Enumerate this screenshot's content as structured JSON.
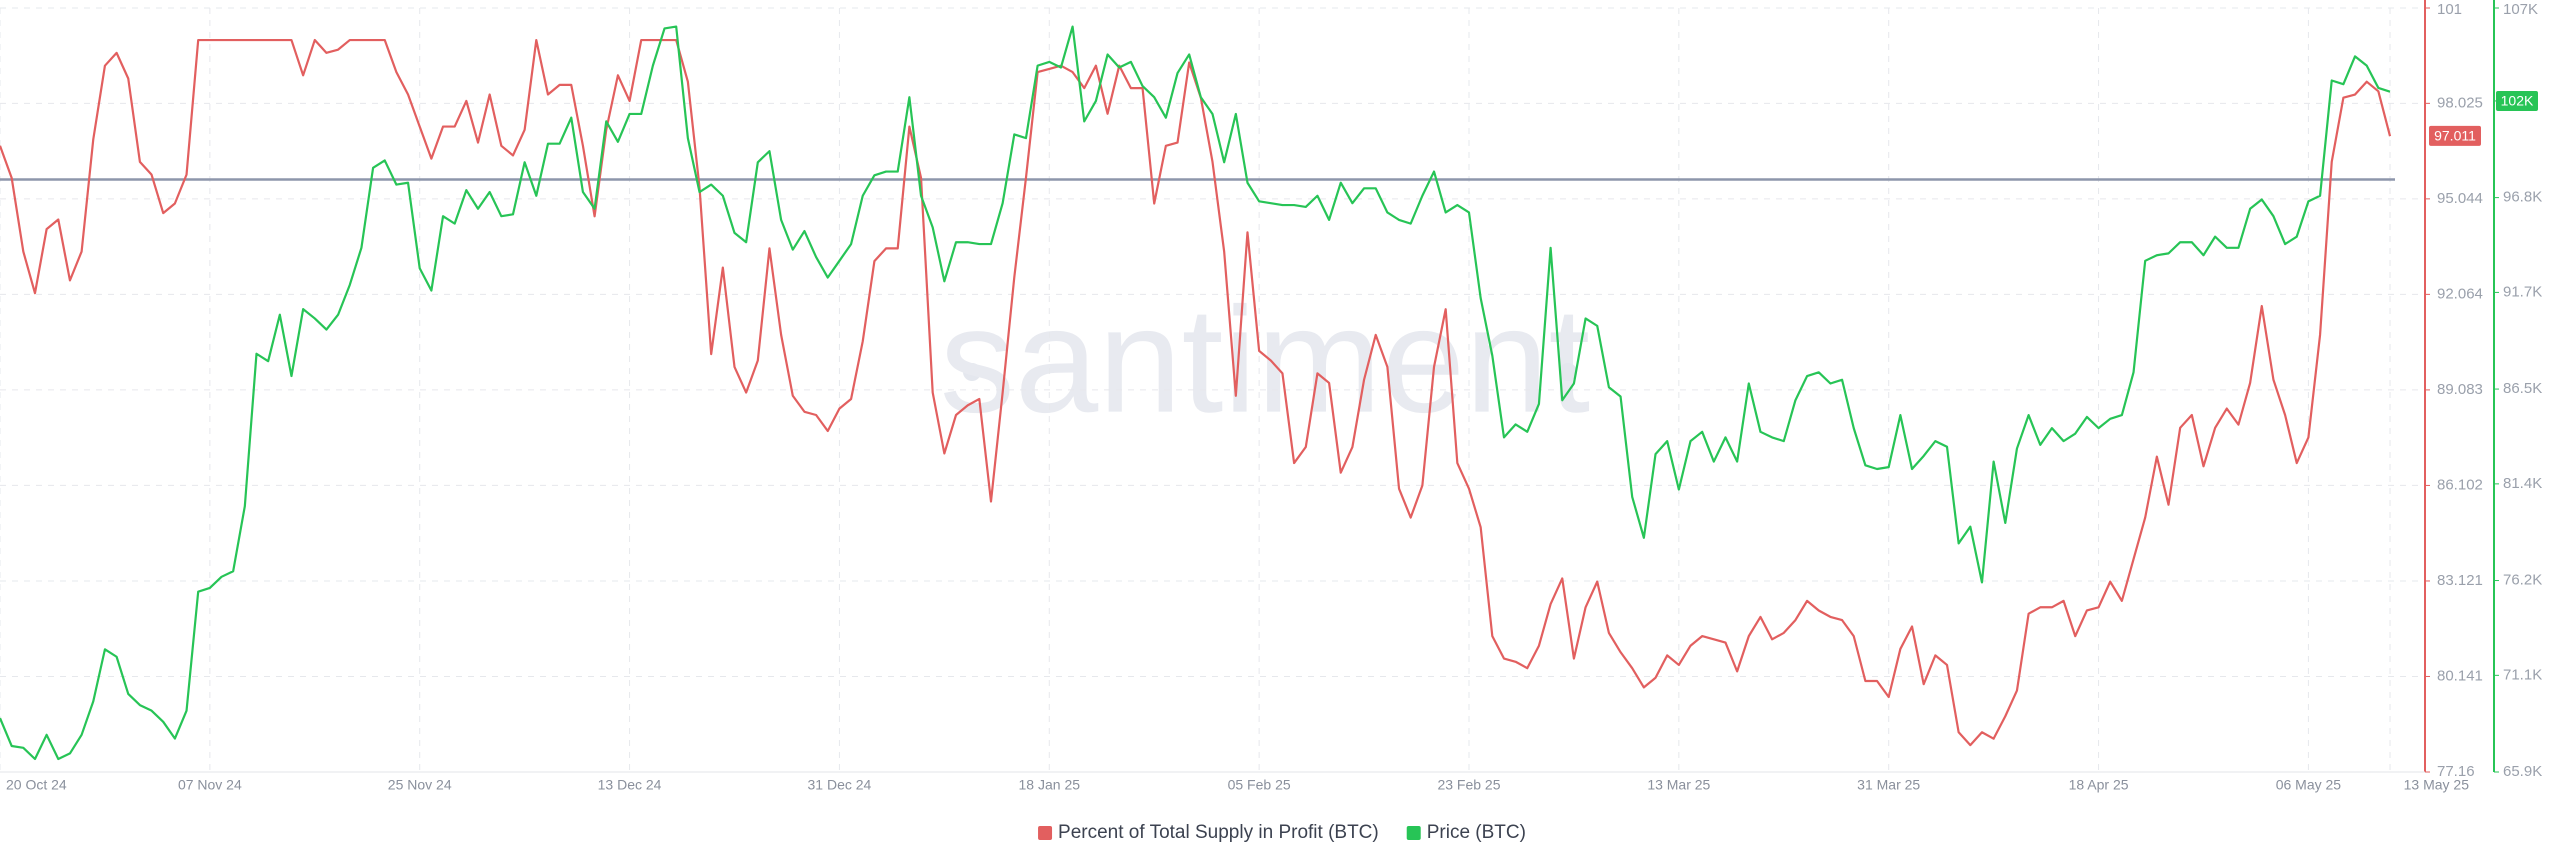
{
  "chart_data": {
    "type": "line",
    "watermark": "santiment",
    "x": [
      "2024-10-20",
      "2024-10-21",
      "2024-10-22",
      "2024-10-23",
      "2024-10-24",
      "2024-10-25",
      "2024-10-26",
      "2024-10-27",
      "2024-10-28",
      "2024-10-29",
      "2024-10-30",
      "2024-10-31",
      "2024-11-01",
      "2024-11-02",
      "2024-11-03",
      "2024-11-04",
      "2024-11-05",
      "2024-11-06",
      "2024-11-07",
      "2024-11-08",
      "2024-11-09",
      "2024-11-10",
      "2024-11-11",
      "2024-11-12",
      "2024-11-13",
      "2024-11-14",
      "2024-11-15",
      "2024-11-16",
      "2024-11-17",
      "2024-11-18",
      "2024-11-19",
      "2024-11-20",
      "2024-11-21",
      "2024-11-22",
      "2024-11-23",
      "2024-11-24",
      "2024-11-25",
      "2024-11-26",
      "2024-11-27",
      "2024-11-28",
      "2024-11-29",
      "2024-11-30",
      "2024-12-01",
      "2024-12-02",
      "2024-12-03",
      "2024-12-04",
      "2024-12-05",
      "2024-12-06",
      "2024-12-07",
      "2024-12-08",
      "2024-12-09",
      "2024-12-10",
      "2024-12-11",
      "2024-12-12",
      "2024-12-13",
      "2024-12-14",
      "2024-12-15",
      "2024-12-16",
      "2024-12-17",
      "2024-12-18",
      "2024-12-19",
      "2024-12-20",
      "2024-12-21",
      "2024-12-22",
      "2024-12-23",
      "2024-12-24",
      "2024-12-25",
      "2024-12-26",
      "2024-12-27",
      "2024-12-28",
      "2024-12-29",
      "2024-12-30",
      "2024-12-31",
      "2025-01-01",
      "2025-01-02",
      "2025-01-03",
      "2025-01-04",
      "2025-01-05",
      "2025-01-06",
      "2025-01-07",
      "2025-01-08",
      "2025-01-09",
      "2025-01-10",
      "2025-01-11",
      "2025-01-12",
      "2025-01-13",
      "2025-01-14",
      "2025-01-15",
      "2025-01-16",
      "2025-01-17",
      "2025-01-18",
      "2025-01-19",
      "2025-01-20",
      "2025-01-21",
      "2025-01-22",
      "2025-01-23",
      "2025-01-24",
      "2025-01-25",
      "2025-01-26",
      "2025-01-27",
      "2025-01-28",
      "2025-01-29",
      "2025-01-30",
      "2025-01-31",
      "2025-02-01",
      "2025-02-02",
      "2025-02-03",
      "2025-02-04",
      "2025-02-05",
      "2025-02-06",
      "2025-02-07",
      "2025-02-08",
      "2025-02-09",
      "2025-02-10",
      "2025-02-11",
      "2025-02-12",
      "2025-02-13",
      "2025-02-14",
      "2025-02-15",
      "2025-02-16",
      "2025-02-17",
      "2025-02-18",
      "2025-02-19",
      "2025-02-20",
      "2025-02-21",
      "2025-02-22",
      "2025-02-23",
      "2025-02-24",
      "2025-02-25",
      "2025-02-26",
      "2025-02-27",
      "2025-02-28",
      "2025-03-01",
      "2025-03-02",
      "2025-03-03",
      "2025-03-04",
      "2025-03-05",
      "2025-03-06",
      "2025-03-07",
      "2025-03-08",
      "2025-03-09",
      "2025-03-10",
      "2025-03-11",
      "2025-03-12",
      "2025-03-13",
      "2025-03-14",
      "2025-03-15",
      "2025-03-16",
      "2025-03-17",
      "2025-03-18",
      "2025-03-19",
      "2025-03-20",
      "2025-03-21",
      "2025-03-22",
      "2025-03-23",
      "2025-03-24",
      "2025-03-25",
      "2025-03-26",
      "2025-03-27",
      "2025-03-28",
      "2025-03-29",
      "2025-03-30",
      "2025-03-31",
      "2025-04-01",
      "2025-04-02",
      "2025-04-03",
      "2025-04-04",
      "2025-04-05",
      "2025-04-06",
      "2025-04-07",
      "2025-04-08",
      "2025-04-09",
      "2025-04-10",
      "2025-04-11",
      "2025-04-12",
      "2025-04-13",
      "2025-04-14",
      "2025-04-15",
      "2025-04-16",
      "2025-04-17",
      "2025-04-18",
      "2025-04-19",
      "2025-04-20",
      "2025-04-21",
      "2025-04-22",
      "2025-04-23",
      "2025-04-24",
      "2025-04-25",
      "2025-04-26",
      "2025-04-27",
      "2025-04-28",
      "2025-04-29",
      "2025-04-30",
      "2025-05-01",
      "2025-05-02",
      "2025-05-03",
      "2025-05-04",
      "2025-05-05",
      "2025-05-06",
      "2025-05-07",
      "2025-05-08",
      "2025-05-09",
      "2025-05-10",
      "2025-05-11",
      "2025-05-12",
      "2025-05-13"
    ],
    "xlim": [
      "2024-10-20",
      "2025-05-16"
    ],
    "xticks": [
      {
        "value": "2024-10-20",
        "label": "20 Oct 24"
      },
      {
        "value": "2024-11-07",
        "label": "07 Nov 24"
      },
      {
        "value": "2024-11-25",
        "label": "25 Nov 24"
      },
      {
        "value": "2024-12-13",
        "label": "13 Dec 24"
      },
      {
        "value": "2024-12-31",
        "label": "31 Dec 24"
      },
      {
        "value": "2025-01-18",
        "label": "18 Jan 25"
      },
      {
        "value": "2025-02-05",
        "label": "05 Feb 25"
      },
      {
        "value": "2025-02-23",
        "label": "23 Feb 25"
      },
      {
        "value": "2025-03-13",
        "label": "13 Mar 25"
      },
      {
        "value": "2025-03-31",
        "label": "31 Mar 25"
      },
      {
        "value": "2025-04-18",
        "label": "18 Apr 25"
      },
      {
        "value": "2025-05-06",
        "label": "06 May 25"
      },
      {
        "value": "2025-05-13",
        "label": "13 May 25"
      }
    ],
    "ylim": [
      77.16,
      101
    ],
    "yticks": [
      77.16,
      80.141,
      83.121,
      86.102,
      89.083,
      92.064,
      95.044,
      98.025,
      101
    ],
    "y2lim": [
      65900,
      107000
    ],
    "y2ticks": [
      {
        "value": 65900,
        "label": "65.9K"
      },
      {
        "value": 71100,
        "label": "71.1K"
      },
      {
        "value": 76200,
        "label": "76.2K"
      },
      {
        "value": 81400,
        "label": "81.4K"
      },
      {
        "value": 86500,
        "label": "86.5K"
      },
      {
        "value": 91700,
        "label": "91.7K"
      },
      {
        "value": 96800,
        "label": "96.8K"
      },
      {
        "value": 102000,
        "label": "102K"
      },
      {
        "value": 107000,
        "label": "107K"
      }
    ],
    "grid": true,
    "reference_line": {
      "axis": "y",
      "value": 95.65,
      "color": "#8d96ab"
    },
    "legend": "bottom",
    "series": [
      {
        "name": "Percent of Total Supply in Profit (BTC)",
        "color": "#e25f5f",
        "axis": "y",
        "last_value": 97.011,
        "values": [
          96.7,
          95.7,
          93.4,
          92.1,
          94.1,
          94.4,
          92.5,
          93.4,
          96.9,
          99.2,
          99.6,
          98.8,
          96.2,
          95.8,
          94.6,
          94.9,
          95.8,
          100,
          100,
          100,
          100,
          100,
          100,
          100,
          100,
          100,
          98.9,
          100,
          99.6,
          99.7,
          100,
          100,
          100,
          100,
          99.0,
          98.3,
          97.3,
          96.3,
          97.3,
          97.3,
          98.1,
          96.8,
          98.3,
          96.7,
          96.4,
          97.2,
          100,
          98.3,
          98.6,
          98.6,
          96.7,
          94.5,
          97.2,
          98.9,
          98.1,
          100,
          100,
          100,
          100,
          98.7,
          95.4,
          90.2,
          92.9,
          89.8,
          89.0,
          90.0,
          93.5,
          90.8,
          88.9,
          88.4,
          88.3,
          87.8,
          88.5,
          88.8,
          90.6,
          93.1,
          93.5,
          93.5,
          97.3,
          95.7,
          89.0,
          87.1,
          88.3,
          88.6,
          88.8,
          85.6,
          89.0,
          92.6,
          95.7,
          99.0,
          99.1,
          99.2,
          99.0,
          98.5,
          99.2,
          97.7,
          99.2,
          98.5,
          98.5,
          94.9,
          96.7,
          96.8,
          99.3,
          98.2,
          96.2,
          93.4,
          88.9,
          94.0,
          90.3,
          90.0,
          89.6,
          86.8,
          87.3,
          89.6,
          89.3,
          86.5,
          87.3,
          89.4,
          90.8,
          89.8,
          86.0,
          85.1,
          86.1,
          89.8,
          91.6,
          86.8,
          86.0,
          84.8,
          81.4,
          80.7,
          80.6,
          80.4,
          81.1,
          82.4,
          83.2,
          80.7,
          82.3,
          83.1,
          81.5,
          80.9,
          80.4,
          79.8,
          80.1,
          80.8,
          80.5,
          81.1,
          81.4,
          81.3,
          81.2,
          80.3,
          81.4,
          82.0,
          81.3,
          81.5,
          81.9,
          82.5,
          82.2,
          82.0,
          81.9,
          81.4,
          80.0,
          80.0,
          79.5,
          81.0,
          81.7,
          79.9,
          80.8,
          80.5,
          78.4,
          78.0,
          78.4,
          78.2,
          78.9,
          79.7,
          82.1,
          82.3,
          82.3,
          82.5,
          81.4,
          82.2,
          82.3,
          83.1,
          82.5,
          83.8,
          85.1,
          87.0,
          85.5,
          87.9,
          88.3,
          86.7,
          87.9,
          88.5,
          88.0,
          89.3,
          91.7,
          89.4,
          88.3,
          86.8,
          87.6,
          90.8,
          96.2,
          98.2,
          98.3,
          98.7,
          98.4,
          97.0
        ]
      },
      {
        "name": "Price (BTC)",
        "color": "#27c456",
        "axis": "y2",
        "last_value": {
          "value": 102000,
          "label": "102K"
        },
        "values": [
          68800,
          67300,
          67200,
          66600,
          67900,
          66600,
          66900,
          67900,
          69700,
          72500,
          72100,
          70100,
          69500,
          69200,
          68600,
          67700,
          69200,
          75600,
          75800,
          76400,
          76700,
          80200,
          88400,
          88000,
          90500,
          87200,
          90800,
          90300,
          89700,
          90500,
          92100,
          94100,
          98400,
          98800,
          97500,
          97600,
          93000,
          91800,
          95800,
          95400,
          97200,
          96200,
          97100,
          95800,
          95900,
          98700,
          96900,
          99700,
          99700,
          101100,
          97100,
          96200,
          100900,
          99800,
          101300,
          101300,
          103900,
          105900,
          106000,
          100000,
          97100,
          97500,
          96900,
          94900,
          94400,
          98700,
          99300,
          95600,
          94000,
          95000,
          93600,
          92500,
          93400,
          94300,
          96900,
          98000,
          98200,
          98200,
          102200,
          96900,
          95200,
          92300,
          94400,
          94400,
          94300,
          94300,
          96500,
          100200,
          100000,
          103900,
          104100,
          103800,
          106000,
          100900,
          102000,
          104500,
          103800,
          104100,
          102800,
          102200,
          101100,
          103500,
          104500,
          102200,
          101300,
          98700,
          101300,
          97600,
          96600,
          96500,
          96400,
          96400,
          96300,
          96900,
          95600,
          97600,
          96500,
          97300,
          97300,
          96000,
          95600,
          95400,
          96900,
          98200,
          96000,
          96400,
          96000,
          91400,
          88300,
          83900,
          84600,
          84200,
          85700,
          94100,
          85900,
          86800,
          90300,
          89900,
          86600,
          86100,
          80700,
          78500,
          83000,
          83700,
          81100,
          83700,
          84200,
          82600,
          83900,
          82600,
          86800,
          84200,
          83900,
          83700,
          85900,
          87200,
          87400,
          86800,
          87000,
          84400,
          82400,
          82200,
          82300,
          85100,
          82200,
          82900,
          83700,
          83400,
          78200,
          79100,
          76100,
          82600,
          79300,
          83300,
          85100,
          83500,
          84400,
          83700,
          84100,
          85000,
          84400,
          84900,
          85100,
          87400,
          93400,
          93700,
          93800,
          94400,
          94400,
          93700,
          94700,
          94100,
          94100,
          96200,
          96700,
          95800,
          94300,
          94700,
          96600,
          96900,
          103100,
          102900,
          104400,
          103900,
          102700,
          102500
        ]
      }
    ]
  }
}
